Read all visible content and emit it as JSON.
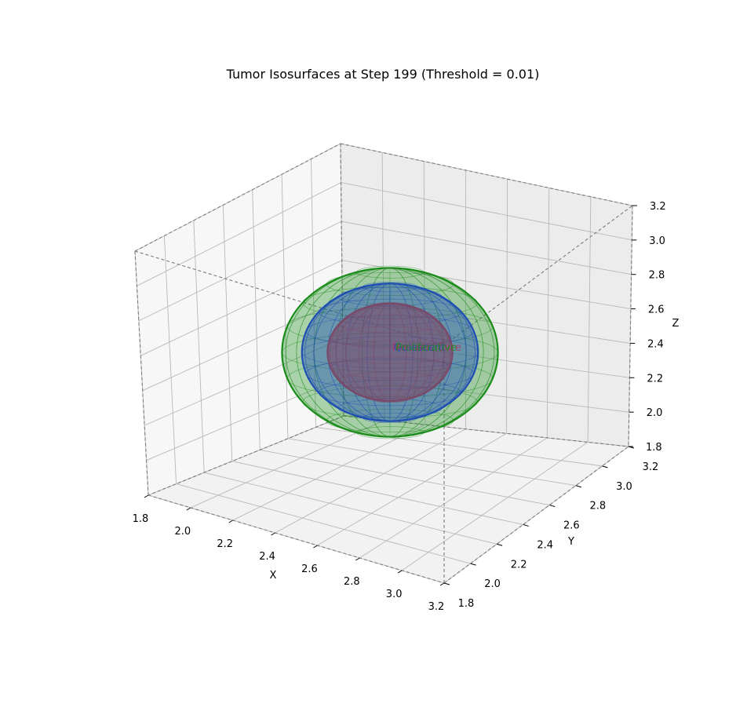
{
  "chart_data": {
    "type": "3d-isosurface",
    "title": "Tumor Isosurfaces at Step 199 (Threshold = 0.01)",
    "axes": {
      "x": {
        "label": "X",
        "range": [
          1.8,
          3.2
        ],
        "ticks": [
          "1.8",
          "2.0",
          "2.2",
          "2.4",
          "2.6",
          "2.8",
          "3.0",
          "3.2"
        ]
      },
      "y": {
        "label": "Y",
        "range": [
          1.8,
          3.2
        ],
        "ticks": [
          "1.8",
          "2.0",
          "2.2",
          "2.4",
          "2.6",
          "2.8",
          "3.0",
          "3.2"
        ]
      },
      "z": {
        "label": "Z",
        "range": [
          1.8,
          3.2
        ],
        "ticks": [
          "1.8",
          "2.0",
          "2.2",
          "2.4",
          "2.6",
          "2.8",
          "3.0",
          "3.2"
        ]
      }
    },
    "grid": true,
    "surfaces": [
      {
        "center": [
          2.5,
          2.5,
          2.5
        ],
        "radius": 0.38,
        "color": "#1a8c1a",
        "opacity": 0.35
      },
      {
        "center": [
          2.5,
          2.5,
          2.5
        ],
        "radius": 0.31,
        "color": "#1f4fb4",
        "opacity": 0.45
      },
      {
        "center": [
          2.5,
          2.5,
          2.5
        ],
        "radius": 0.22,
        "color": "#7a4a6a",
        "opacity": 0.6
      }
    ],
    "annotations": [
      {
        "text": "Necrotic Core",
        "color": "#b0306a"
      },
      {
        "text": "Quiescent",
        "color": "#1f4fb4"
      },
      {
        "text": "Proliferative",
        "color": "#1a8c1a"
      }
    ]
  }
}
